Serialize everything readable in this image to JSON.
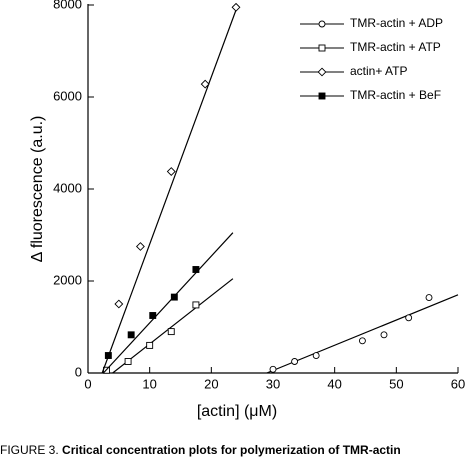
{
  "chart_data": {
    "type": "scatter",
    "xlabel": "[actin]  (μM)",
    "ylabel": "Δ fluorescence (a.u.)",
    "caption_prefix": "FIGURE 3.",
    "caption": "Critical concentration plots for polymerization of TMR-actin",
    "xlim": [
      0,
      60
    ],
    "xticks": [
      0,
      10,
      20,
      30,
      40,
      50,
      60
    ],
    "ylim": [
      0,
      8000
    ],
    "yticks": [
      0,
      2000,
      4000,
      6000,
      8000
    ],
    "legend": "upper right",
    "series": [
      {
        "name": "TMR-actin + ADP",
        "color": "#000000",
        "marker": "circle",
        "filled": false,
        "x": [
          30,
          33.5,
          37,
          44.5,
          48,
          52,
          55.3
        ],
        "values": [
          80,
          250,
          380,
          700,
          830,
          1200,
          1640
        ],
        "fit": {
          "x": [
            29,
            60
          ],
          "y": [
            0,
            1700
          ]
        }
      },
      {
        "name": "TMR-actin + ATP",
        "color": "#000000",
        "marker": "square",
        "filled": false,
        "x": [
          3,
          6.5,
          10,
          13.5,
          17.5
        ],
        "values": [
          60,
          250,
          600,
          900,
          1480
        ],
        "fit": {
          "x": [
            4,
            23.5
          ],
          "y": [
            0,
            2050
          ]
        }
      },
      {
        "name": "actin+ ATP",
        "color": "#000000",
        "marker": "diamond",
        "filled": false,
        "x": [
          5,
          8.5,
          13.5,
          19,
          24
        ],
        "values": [
          1500,
          2750,
          4380,
          6280,
          7950
        ],
        "fit": {
          "x": [
            2.3,
            24.3
          ],
          "y": [
            0,
            8000
          ]
        }
      },
      {
        "name": "TMR-actin + BeF",
        "color": "#000000",
        "marker": "square",
        "filled": true,
        "x": [
          3.3,
          7,
          10.5,
          14,
          17.5
        ],
        "values": [
          380,
          830,
          1250,
          1650,
          2250
        ],
        "fit": {
          "x": [
            2.5,
            23.5
          ],
          "y": [
            0,
            3050
          ]
        }
      }
    ]
  }
}
